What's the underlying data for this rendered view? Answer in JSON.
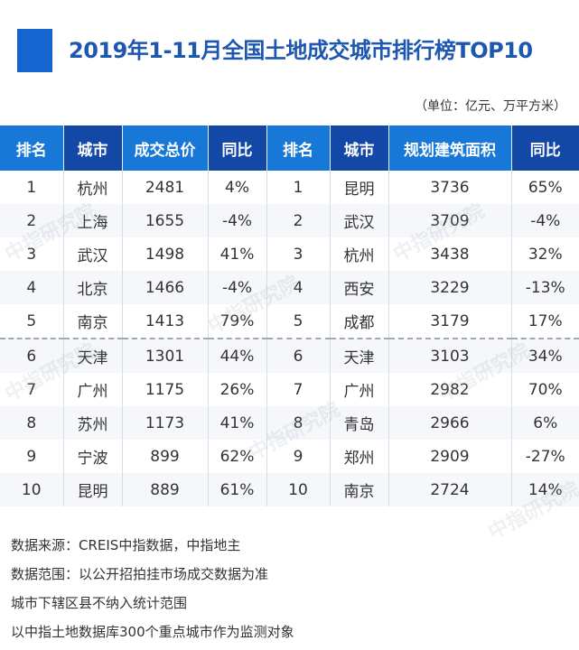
{
  "title": "2019年1-11月全国土地成交城市排行榜TOP10",
  "unit": "（单位：亿元、万平方米）",
  "headers": [
    "排名",
    "城市",
    "成交总价",
    "同比",
    "排名",
    "城市",
    "规划建筑面积",
    "同比"
  ],
  "rows": [
    [
      "1",
      "杭州",
      "2481",
      "4%",
      "1",
      "昆明",
      "3736",
      "65%"
    ],
    [
      "2",
      "上海",
      "1655",
      "-4%",
      "2",
      "武汉",
      "3709",
      "-4%"
    ],
    [
      "3",
      "武汉",
      "1498",
      "41%",
      "3",
      "杭州",
      "3438",
      "32%"
    ],
    [
      "4",
      "北京",
      "1466",
      "-4%",
      "4",
      "西安",
      "3229",
      "-13%"
    ],
    [
      "5",
      "南京",
      "1413",
      "79%",
      "5",
      "成都",
      "3179",
      "17%"
    ],
    [
      "6",
      "天津",
      "1301",
      "44%",
      "6",
      "天津",
      "3103",
      "34%"
    ],
    [
      "7",
      "广州",
      "1175",
      "26%",
      "7",
      "广州",
      "2982",
      "70%"
    ],
    [
      "8",
      "苏州",
      "1173",
      "41%",
      "8",
      "青岛",
      "2966",
      "6%"
    ],
    [
      "9",
      "宁波",
      "899",
      "62%",
      "9",
      "郑州",
      "2909",
      "-27%"
    ],
    [
      "10",
      "昆明",
      "889",
      "61%",
      "10",
      "南京",
      "2724",
      "14%"
    ]
  ],
  "watermark": "中指研究院",
  "footer": [
    "数据来源：CREIS中指数据，中指地主",
    "数据范围：以公开招拍挂市场成交数据为准",
    "城市下辖区县不纳入统计范围",
    "以中指土地数据库300个重点城市作为监测对象"
  ],
  "colors": {
    "accent": "#1565d0",
    "header_light": "#1878d8",
    "header_dark": "#1448a6",
    "title": "#1e57b0"
  }
}
